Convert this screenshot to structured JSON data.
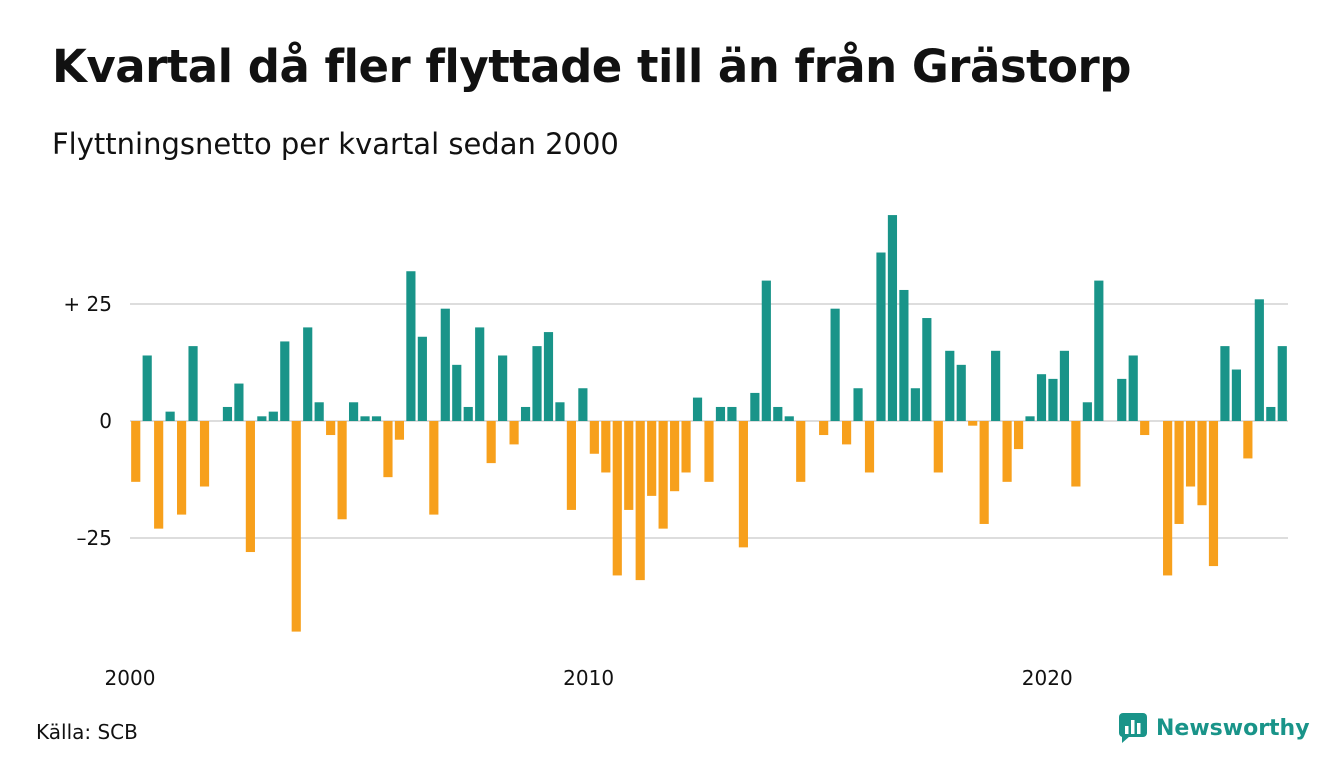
{
  "header": {
    "title": "Kvartal då fler flyttade till än från Grästorp",
    "subtitle": "Flyttningsnetto per kvartal sedan 2000"
  },
  "footer": {
    "source": "Källa: SCB",
    "brand": "Newsworthy"
  },
  "colors": {
    "positive": "#199489",
    "negative": "#f7a01c",
    "grid": "#dddddd",
    "brand": "#199489"
  },
  "icons": [
    "newsworthy-logo-icon"
  ],
  "chart_data": {
    "type": "bar",
    "title": "Kvartal då fler flyttade till än från Grästorp",
    "subtitle": "Flyttningsnetto per kvartal sedan 2000",
    "xlabel": "",
    "ylabel": "",
    "ylim": [
      -47,
      46
    ],
    "grid": true,
    "y_ticks": [
      {
        "value": 25,
        "label": "+ 25"
      },
      {
        "value": 0,
        "label": "0"
      },
      {
        "value": -25,
        "label": "–25"
      }
    ],
    "x_ticks": [
      {
        "quarter_index": 0,
        "label": "2000"
      },
      {
        "quarter_index": 40,
        "label": "2010"
      },
      {
        "quarter_index": 80,
        "label": "2020"
      }
    ],
    "start": "2000 Q1",
    "values": [
      -13,
      14,
      -23,
      2,
      -20,
      16,
      -14,
      0,
      3,
      8,
      -28,
      1,
      2,
      17,
      -45,
      20,
      4,
      -3,
      -21,
      4,
      1,
      1,
      -12,
      -4,
      32,
      18,
      -20,
      24,
      12,
      3,
      20,
      -9,
      14,
      -5,
      3,
      16,
      19,
      4,
      -19,
      7,
      -7,
      -11,
      -33,
      -19,
      -34,
      -16,
      -23,
      -15,
      -11,
      5,
      -13,
      3,
      3,
      -27,
      6,
      30,
      3,
      1,
      -13,
      0,
      -3,
      24,
      -5,
      7,
      -11,
      36,
      44,
      28,
      7,
      22,
      -11,
      15,
      12,
      -1,
      -22,
      15,
      -13,
      -6,
      1,
      10,
      9,
      15,
      -14,
      4,
      30,
      0,
      9,
      14,
      -3,
      0,
      -33,
      -22,
      -14,
      -18,
      -31,
      16,
      11,
      -8,
      26,
      3,
      16
    ]
  }
}
